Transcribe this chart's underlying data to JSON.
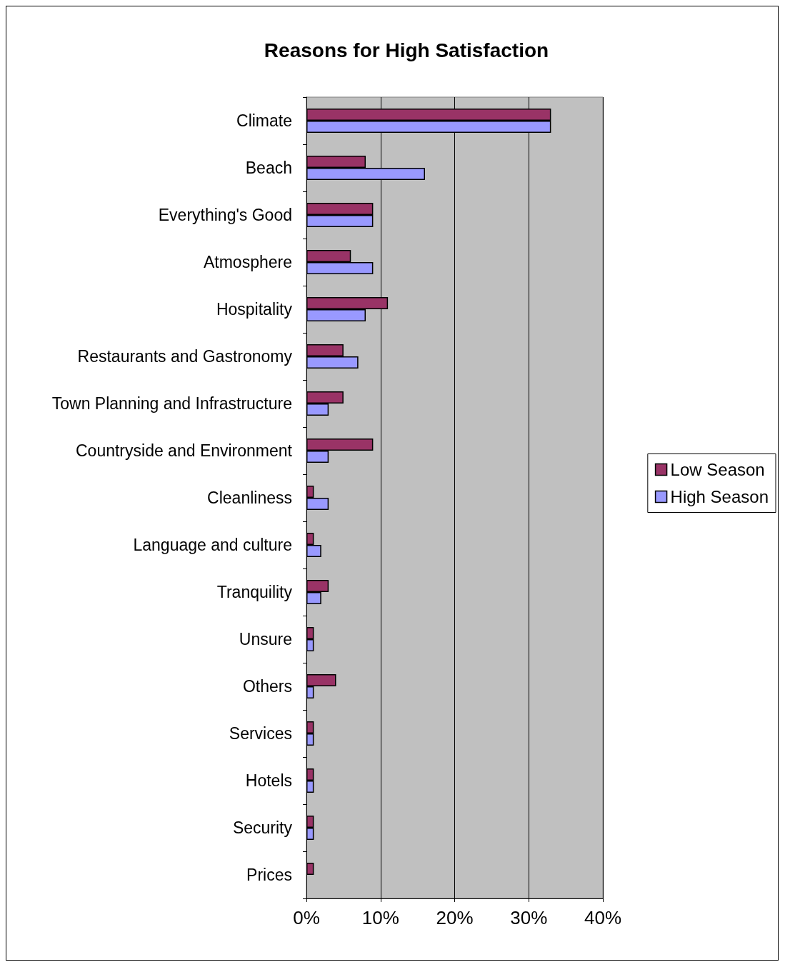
{
  "chart_data": {
    "type": "bar",
    "orientation": "horizontal",
    "title": "Reasons for High Satisfaction",
    "categories": [
      "Climate",
      "Beach",
      "Everything's Good",
      "Atmosphere",
      "Hospitality",
      "Restaurants and Gastronomy",
      "Town Planning and Infrastructure",
      "Countryside and Environment",
      "Cleanliness",
      "Language and culture",
      "Tranquility",
      "Unsure",
      "Others",
      "Services",
      "Hotels",
      "Security",
      "Prices"
    ],
    "series": [
      {
        "name": "Low Season",
        "color": "#993366",
        "values": [
          33,
          8,
          9,
          6,
          11,
          5,
          5,
          9,
          1,
          1,
          3,
          1,
          4,
          1,
          1,
          1,
          1
        ]
      },
      {
        "name": "High Season",
        "color": "#9999ff",
        "values": [
          33,
          16,
          9,
          9,
          8,
          7,
          3,
          3,
          3,
          2,
          2,
          1,
          1,
          1,
          1,
          1,
          null
        ]
      }
    ],
    "xlim": [
      0,
      40
    ],
    "xticks": [
      {
        "value": 0,
        "label": "0%"
      },
      {
        "value": 10,
        "label": "10%"
      },
      {
        "value": 20,
        "label": "20%"
      },
      {
        "value": 30,
        "label": "30%"
      },
      {
        "value": 40,
        "label": "40%"
      }
    ],
    "grid": "x",
    "legend": "right"
  }
}
